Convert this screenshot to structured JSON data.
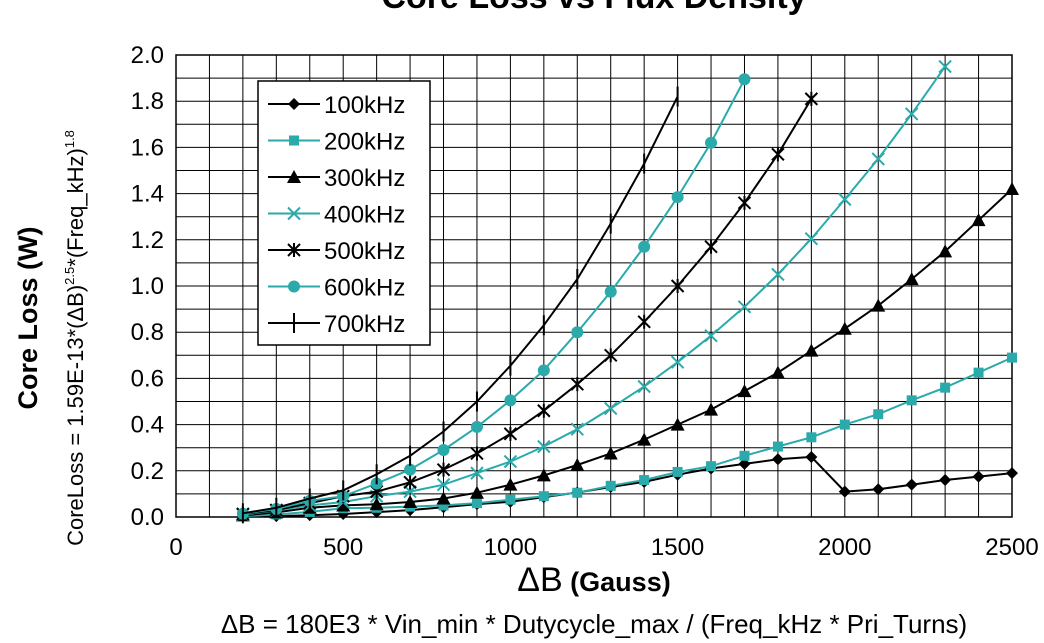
{
  "chart_data": {
    "type": "line",
    "title": "Core Loss vs  Flux Density",
    "xlabel_symbol": "ΔB",
    "xlabel_text": " (Gauss)",
    "x_formula": "ΔB = 180E3 * Vin_min * Dutycycle_max / (Freq_kHz * Pri_Turns)",
    "ylabel": "Core Loss (W)",
    "y_formula_parts": [
      "CoreLoss = 1.59E-13*(ΔB)",
      "2.5",
      "*(Freq_kHz)",
      "1.8"
    ],
    "xlim": [
      0,
      2500
    ],
    "ylim": [
      0,
      2.0
    ],
    "x_ticks": [
      "0",
      "500",
      "1000",
      "1500",
      "2000",
      "2500"
    ],
    "y_ticks": [
      "0.0",
      "0.2",
      "0.4",
      "0.6",
      "0.8",
      "1.0",
      "1.2",
      "1.4",
      "1.6",
      "1.8",
      "2.0"
    ],
    "grid": true,
    "legend_position": "top-left",
    "series": [
      {
        "name": "100kHz",
        "color": "#000000",
        "marker": "diamond",
        "x": [
          200,
          300,
          400,
          500,
          600,
          700,
          800,
          900,
          1000,
          1100,
          1200,
          1300,
          1400,
          1500,
          1600,
          1700,
          1800,
          1900,
          2000,
          2100,
          2200,
          2300,
          2400,
          2500
        ],
        "y": [
          0.002,
          0.004,
          0.008,
          0.013,
          0.021,
          0.03,
          0.042,
          0.056,
          0.066,
          0.086,
          0.106,
          0.13,
          0.152,
          0.183,
          0.21,
          0.23,
          0.25,
          0.26,
          0.11,
          0.12,
          0.14,
          0.16,
          0.175,
          0.19
        ]
      },
      {
        "name": "200kHz",
        "color": "#2AAAAA",
        "marker": "square",
        "x": [
          200,
          300,
          400,
          500,
          600,
          700,
          800,
          900,
          1000,
          1100,
          1200,
          1300,
          1400,
          1500,
          1600,
          1700,
          1800,
          1900,
          2000,
          2100,
          2200,
          2300,
          2400,
          2500
        ],
        "y": [
          0.004,
          0.011,
          0.022,
          0.038,
          0.04,
          0.045,
          0.05,
          0.06,
          0.075,
          0.09,
          0.105,
          0.135,
          0.16,
          0.195,
          0.22,
          0.265,
          0.305,
          0.345,
          0.4,
          0.445,
          0.505,
          0.56,
          0.625,
          0.69
        ]
      },
      {
        "name": "300kHz",
        "color": "#000000",
        "marker": "triangle",
        "x": [
          200,
          300,
          400,
          500,
          600,
          700,
          800,
          900,
          1000,
          1100,
          1200,
          1300,
          1400,
          1500,
          1600,
          1700,
          1800,
          1900,
          2000,
          2100,
          2200,
          2300,
          2400,
          2500
        ],
        "y": [
          0.007,
          0.02,
          0.04,
          0.05,
          0.055,
          0.065,
          0.08,
          0.105,
          0.14,
          0.18,
          0.225,
          0.275,
          0.335,
          0.4,
          0.465,
          0.545,
          0.625,
          0.72,
          0.815,
          0.915,
          1.03,
          1.15,
          1.285,
          1.42
        ]
      },
      {
        "name": "400kHz",
        "color": "#2AAAAA",
        "marker": "x",
        "x": [
          200,
          300,
          400,
          500,
          600,
          700,
          800,
          900,
          1000,
          1100,
          1200,
          1300,
          1400,
          1500,
          1600,
          1700,
          1800,
          1900,
          2000,
          2100,
          2200,
          2300
        ],
        "y": [
          0.01,
          0.028,
          0.05,
          0.065,
          0.09,
          0.11,
          0.14,
          0.19,
          0.24,
          0.305,
          0.38,
          0.47,
          0.565,
          0.67,
          0.785,
          0.91,
          1.05,
          1.205,
          1.375,
          1.55,
          1.745,
          1.95
        ]
      },
      {
        "name": "500kHz",
        "color": "#000000",
        "marker": "asterisk",
        "x": [
          200,
          300,
          400,
          500,
          600,
          700,
          800,
          900,
          1000,
          1100,
          1200,
          1300,
          1400,
          1500,
          1600,
          1700,
          1800,
          1900
        ],
        "y": [
          0.013,
          0.03,
          0.06,
          0.09,
          0.11,
          0.15,
          0.205,
          0.275,
          0.36,
          0.46,
          0.575,
          0.7,
          0.845,
          1.0,
          1.17,
          1.36,
          1.57,
          1.81
        ]
      },
      {
        "name": "600kHz",
        "color": "#2AAAAA",
        "marker": "circle",
        "x": [
          200,
          300,
          400,
          500,
          600,
          700,
          800,
          900,
          1000,
          1100,
          1200,
          1300,
          1400,
          1500,
          1600,
          1700
        ],
        "y": [
          0.014,
          0.035,
          0.07,
          0.09,
          0.145,
          0.205,
          0.29,
          0.39,
          0.505,
          0.635,
          0.8,
          0.975,
          1.17,
          1.385,
          1.62,
          1.895
        ]
      },
      {
        "name": "700kHz",
        "color": "#000000",
        "marker": "plus",
        "x": [
          200,
          300,
          400,
          500,
          600,
          700,
          800,
          900,
          1000,
          1100,
          1200,
          1300,
          1400,
          1500
        ],
        "y": [
          0.016,
          0.04,
          0.08,
          0.115,
          0.185,
          0.265,
          0.37,
          0.5,
          0.655,
          0.83,
          1.03,
          1.27,
          1.53,
          1.82
        ]
      }
    ]
  }
}
